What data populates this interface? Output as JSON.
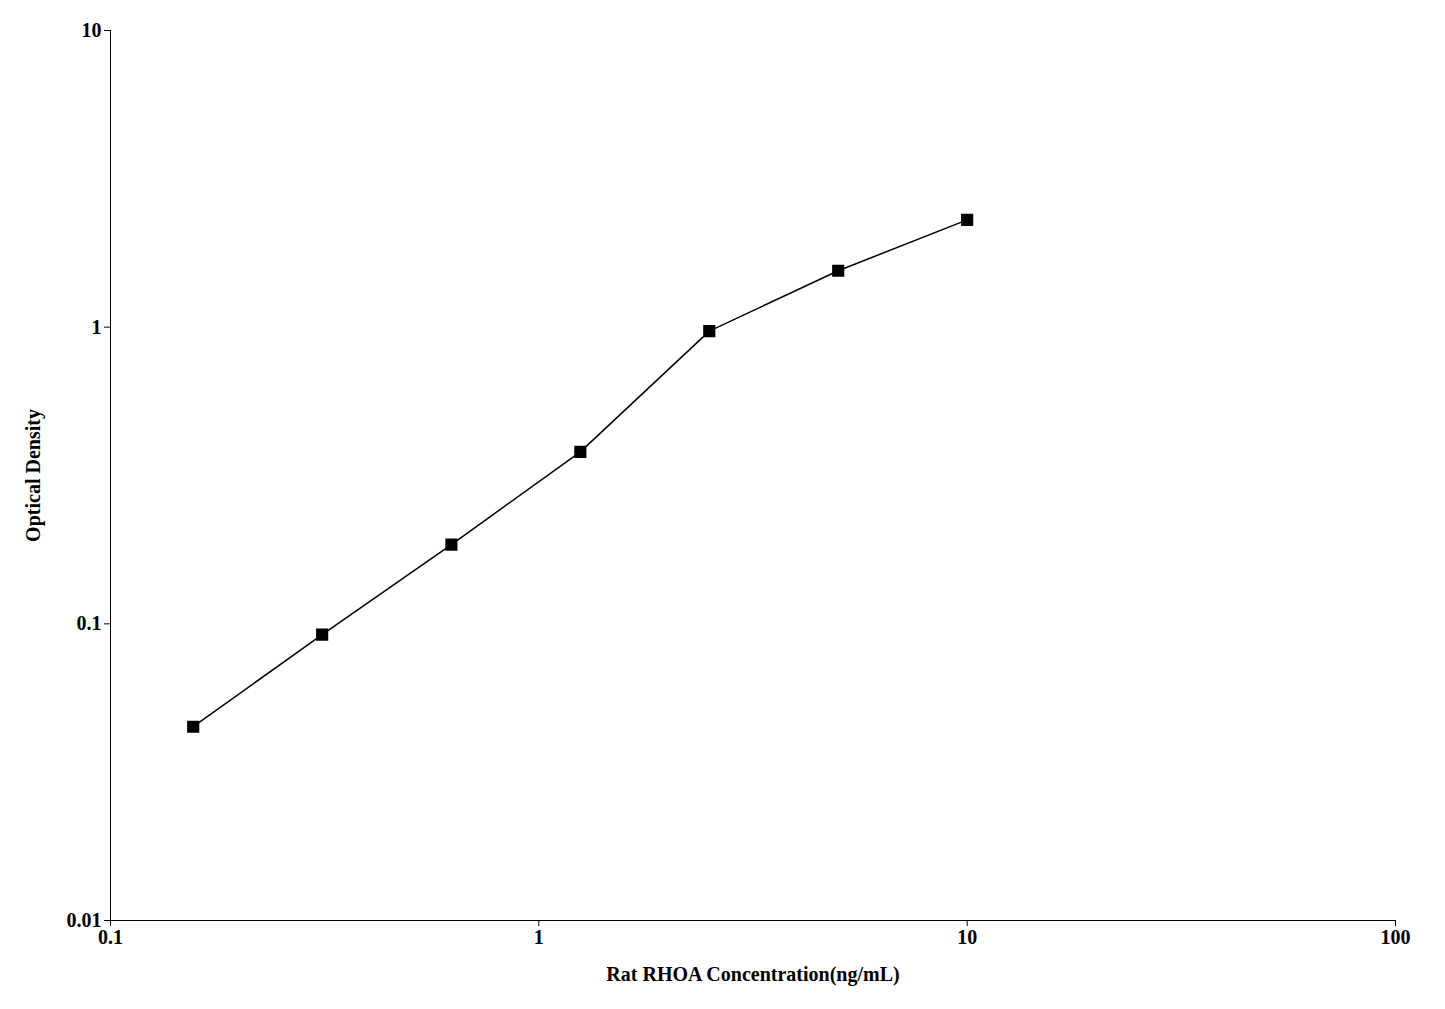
{
  "chart_data": {
    "type": "line",
    "x": [
      0.156,
      0.312,
      0.625,
      1.25,
      2.5,
      5.0,
      10.0
    ],
    "values": [
      0.045,
      0.092,
      0.185,
      0.38,
      0.97,
      1.55,
      2.3
    ],
    "xlabel": "Rat RHOA Concentration(ng/mL)",
    "ylabel": "Optical Density",
    "log": true,
    "xlim": [
      0.1,
      100
    ],
    "ylim": [
      0.01,
      10
    ],
    "xticks": [
      0.1,
      1,
      10,
      100
    ],
    "yticks": [
      0.01,
      0.1,
      1,
      10
    ],
    "color": "#000000",
    "marker": "square",
    "grid": false
  }
}
